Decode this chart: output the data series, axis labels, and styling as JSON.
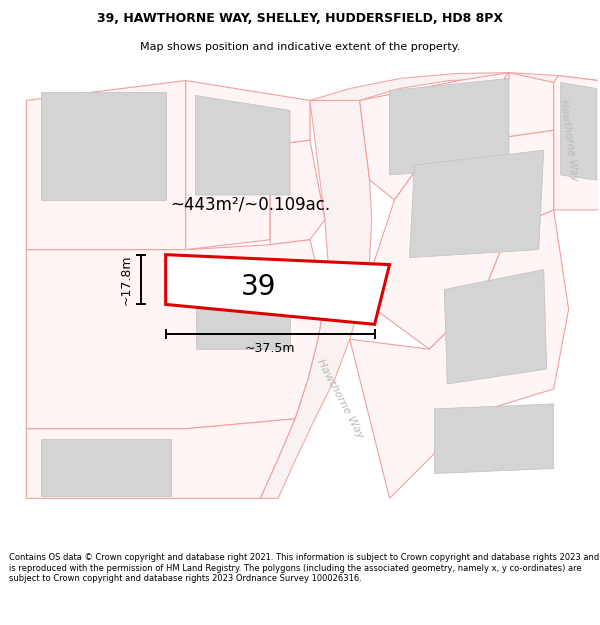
{
  "title_line1": "39, HAWTHORNE WAY, SHELLEY, HUDDERSFIELD, HD8 8PX",
  "title_line2": "Map shows position and indicative extent of the property.",
  "footer_text": "Contains OS data © Crown copyright and database right 2021. This information is subject to Crown copyright and database rights 2023 and is reproduced with the permission of HM Land Registry. The polygons (including the associated geometry, namely x, y co-ordinates) are subject to Crown copyright and database rights 2023 Ordnance Survey 100026316.",
  "area_label": "~443m²/~0.109ac.",
  "width_label": "~37.5m",
  "height_label": "~17.8m",
  "plot_number": "39",
  "bg_color": "#ffffff",
  "map_bg": "#ffffff",
  "plot_fill": "#ffffff",
  "plot_edge": "#dd0000",
  "building_fill": "#d4d4d4",
  "building_edge": "#c0c0c0",
  "road_line": "#f0a0a0",
  "road_fill": "#f8f0f0",
  "dim_color": "#000000",
  "label_color": "#cccccc"
}
